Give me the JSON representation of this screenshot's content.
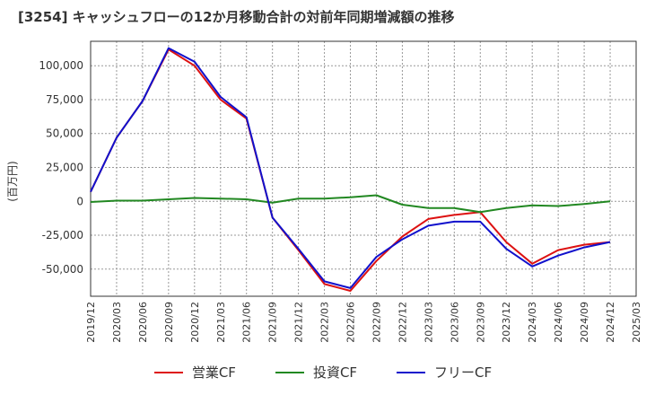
{
  "chart_data": {
    "type": "line",
    "title": "[3254]  キャッシュフローの12か月移動合計の対前年同期増減額の推移",
    "ylabel": "(百万円)",
    "xlabel": "",
    "ylim": [
      -70000,
      118000
    ],
    "yticks": [
      -50000,
      -25000,
      0,
      25000,
      50000,
      75000,
      100000
    ],
    "ytick_labels": [
      "-50,000",
      "-25,000",
      "0",
      "25,000",
      "50,000",
      "75,000",
      "100,000"
    ],
    "xtick_labels": [
      "2019/12",
      "2020/03",
      "2020/06",
      "2020/09",
      "2020/12",
      "2021/03",
      "2021/06",
      "2021/09",
      "2021/12",
      "2022/03",
      "2022/06",
      "2022/09",
      "2022/12",
      "2023/03",
      "2023/06",
      "2023/09",
      "2023/12",
      "2024/03",
      "2024/06",
      "2024/09",
      "2024/12",
      "2025/03"
    ],
    "categories": [
      "2019/12",
      "2020/03",
      "2020/06",
      "2020/09",
      "2020/12",
      "2021/03",
      "2021/06",
      "2021/09",
      "2021/12",
      "2022/03",
      "2022/06",
      "2022/09",
      "2022/12",
      "2023/03",
      "2023/06",
      "2023/09",
      "2023/12",
      "2024/03",
      "2024/06",
      "2024/09",
      "2024/12"
    ],
    "series": [
      {
        "name": "営業CF",
        "color": "#dd1111",
        "values": [
          7000,
          47000,
          74000,
          112000,
          100000,
          75000,
          61000,
          -12000,
          -36000,
          -61000,
          -66000,
          -44000,
          -26000,
          -13000,
          -10000,
          -8000,
          -30000,
          -46000,
          -36000,
          -32000,
          -30000
        ]
      },
      {
        "name": "投資CF",
        "color": "#228822",
        "values": [
          -500,
          500,
          500,
          1500,
          2500,
          2000,
          1500,
          -1000,
          2000,
          2000,
          3000,
          4500,
          -2500,
          -5000,
          -5000,
          -8000,
          -5000,
          -3000,
          -3500,
          -2000,
          0
        ]
      },
      {
        "name": "フリーCF",
        "color": "#1111cc",
        "values": [
          7000,
          47000,
          74000,
          113000,
          103000,
          77000,
          62000,
          -12000,
          -35000,
          -59000,
          -64000,
          -41000,
          -28000,
          -18000,
          -15000,
          -15000,
          -35000,
          -48000,
          -40000,
          -34000,
          -30000
        ]
      }
    ]
  }
}
